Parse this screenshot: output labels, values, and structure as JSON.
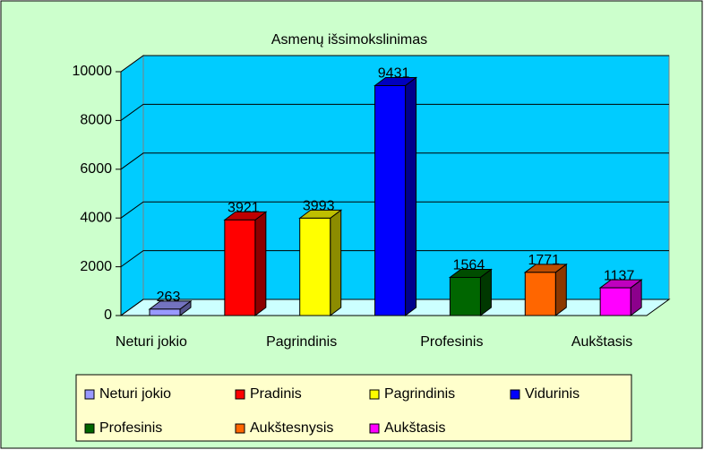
{
  "chart_data": {
    "type": "bar3d",
    "title": "Asmenų išsimokslinimas",
    "categories": [
      "Neturi jokio",
      null,
      "Pagrindinis",
      null,
      "Profesinis",
      null,
      "Aukštasis"
    ],
    "values": [
      263,
      3921,
      3993,
      9431,
      1564,
      1771,
      1137
    ],
    "colors": [
      "#9999ff",
      "#ff0000",
      "#ffff00",
      "#0000ff",
      "#006600",
      "#ff6600",
      "#ff00ff"
    ],
    "legend": [
      "Neturi jokio",
      "Pradinis",
      "Pagrindinis",
      "Vidurinis",
      "Profesinis",
      "Aukštesnysis",
      "Aukštasis"
    ],
    "ylim": [
      0,
      10000
    ],
    "yticks": [
      0,
      2000,
      4000,
      6000,
      8000,
      10000
    ],
    "grid": true
  }
}
